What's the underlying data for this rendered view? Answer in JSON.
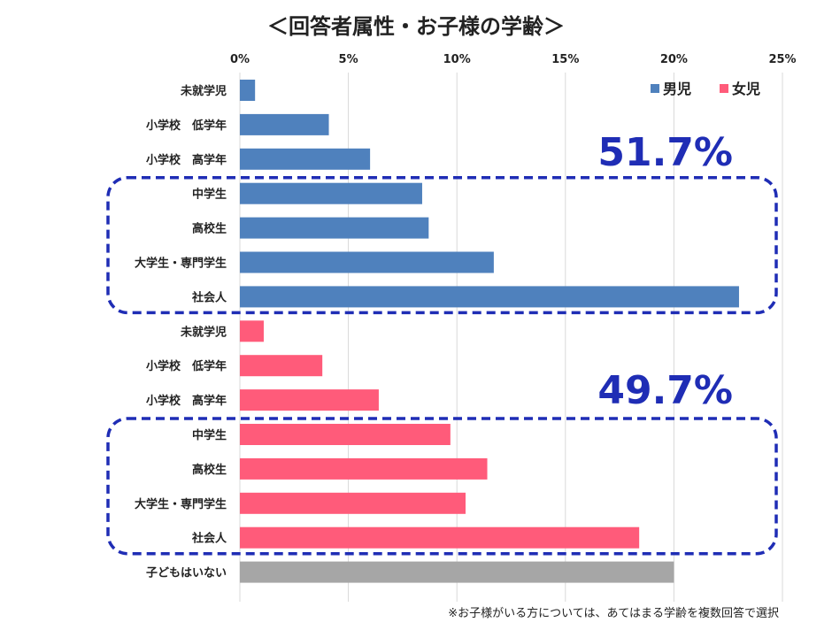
{
  "chart_data": {
    "type": "bar",
    "orientation": "horizontal",
    "title": "＜回答者属性・お子様の学齢＞",
    "xlim": [
      0,
      25
    ],
    "xticks": [
      0,
      5,
      10,
      15,
      20,
      25
    ],
    "xtick_labels": [
      "0%",
      "5%",
      "10%",
      "15%",
      "20%",
      "25%"
    ],
    "grid": "vertical",
    "legend_position": "top-right",
    "series": [
      {
        "name": "男児",
        "color": "#4f81bd",
        "categories": [
          "未就学児",
          "小学校　低学年",
          "小学校　高学年",
          "中学生",
          "高校生",
          "大学生・専門学生",
          "社会人"
        ],
        "values": [
          0.7,
          4.1,
          6.0,
          8.4,
          8.7,
          11.7,
          23.0
        ]
      },
      {
        "name": "女児",
        "color": "#ff5b7a",
        "categories": [
          "未就学児",
          "小学校　低学年",
          "小学校　高学年",
          "中学生",
          "高校生",
          "大学生・専門学生",
          "社会人"
        ],
        "values": [
          1.1,
          3.8,
          6.4,
          9.7,
          11.4,
          10.4,
          18.4
        ]
      },
      {
        "color": "#a6a6a6",
        "categories": [
          "子どもはいない"
        ],
        "values": [
          20.0
        ]
      }
    ],
    "annotations": [
      {
        "text": "51.7%",
        "color": "#1f2db5",
        "box_color": "#1f2db5"
      },
      {
        "text": "49.7%",
        "color": "#1f2db5",
        "box_color": "#1f2db5"
      }
    ],
    "footnote": "※お子様がいる方については、あてはまる学齢を複数回答で選択"
  }
}
